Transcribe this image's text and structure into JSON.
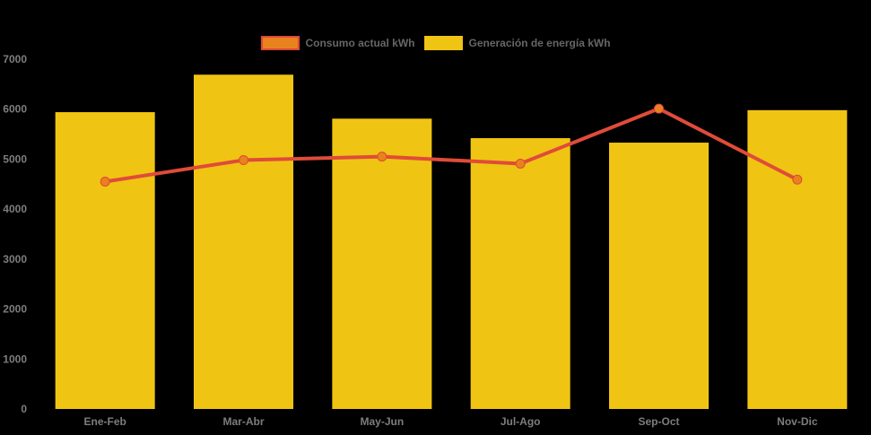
{
  "chart_data": {
    "type": "bar",
    "combo_types": [
      "line",
      "bar"
    ],
    "title": "",
    "xlabel": "",
    "ylabel": "",
    "categories": [
      "Ene-Feb",
      "Mar-Abr",
      "May-Jun",
      "Jul-Ago",
      "Sep-Oct",
      "Nov-Dic"
    ],
    "series": [
      {
        "name": "Consumo actual kWh",
        "type": "line",
        "values": [
          4550,
          4980,
          5050,
          4910,
          6010,
          4590
        ]
      },
      {
        "name": "Generación de energía kWh",
        "type": "bar",
        "values": [
          5940,
          6690,
          5810,
          5420,
          5330,
          5980
        ]
      }
    ],
    "ylim": [
      0,
      7000
    ],
    "yticks": [
      0,
      1000,
      2000,
      3000,
      4000,
      5000,
      6000,
      7000
    ],
    "grid": false,
    "legend_position": "top-center"
  },
  "colors": {
    "background": "#000000",
    "bar_fill": "#F0C412",
    "line_stroke": "#E04B3A",
    "marker_fill": "#E8821E",
    "marker_stroke": "#DE4837",
    "axis_label": "#7D7D7D",
    "legend_text": "#666666"
  }
}
